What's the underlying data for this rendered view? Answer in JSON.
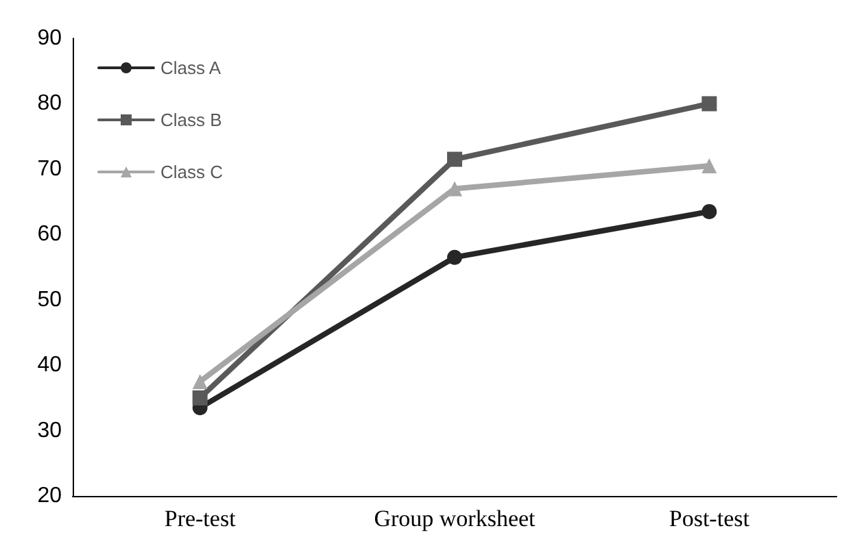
{
  "chart_data": {
    "type": "line",
    "categories": [
      "Pre-test",
      "Group worksheet",
      "Post-test"
    ],
    "series": [
      {
        "name": "Class A",
        "color": "#262626",
        "marker": "circle",
        "values": [
          33.5,
          56.5,
          63.5
        ]
      },
      {
        "name": "Class B",
        "color": "#595959",
        "marker": "square",
        "values": [
          35,
          71.5,
          80
        ]
      },
      {
        "name": "Class C",
        "color": "#a6a6a6",
        "marker": "triangle",
        "values": [
          37.5,
          67,
          70.5
        ]
      }
    ],
    "ylim": [
      20,
      90
    ],
    "yticks": [
      20,
      30,
      40,
      50,
      60,
      70,
      80,
      90
    ],
    "grid": false,
    "legend": "top left",
    "line_style": "solid"
  }
}
